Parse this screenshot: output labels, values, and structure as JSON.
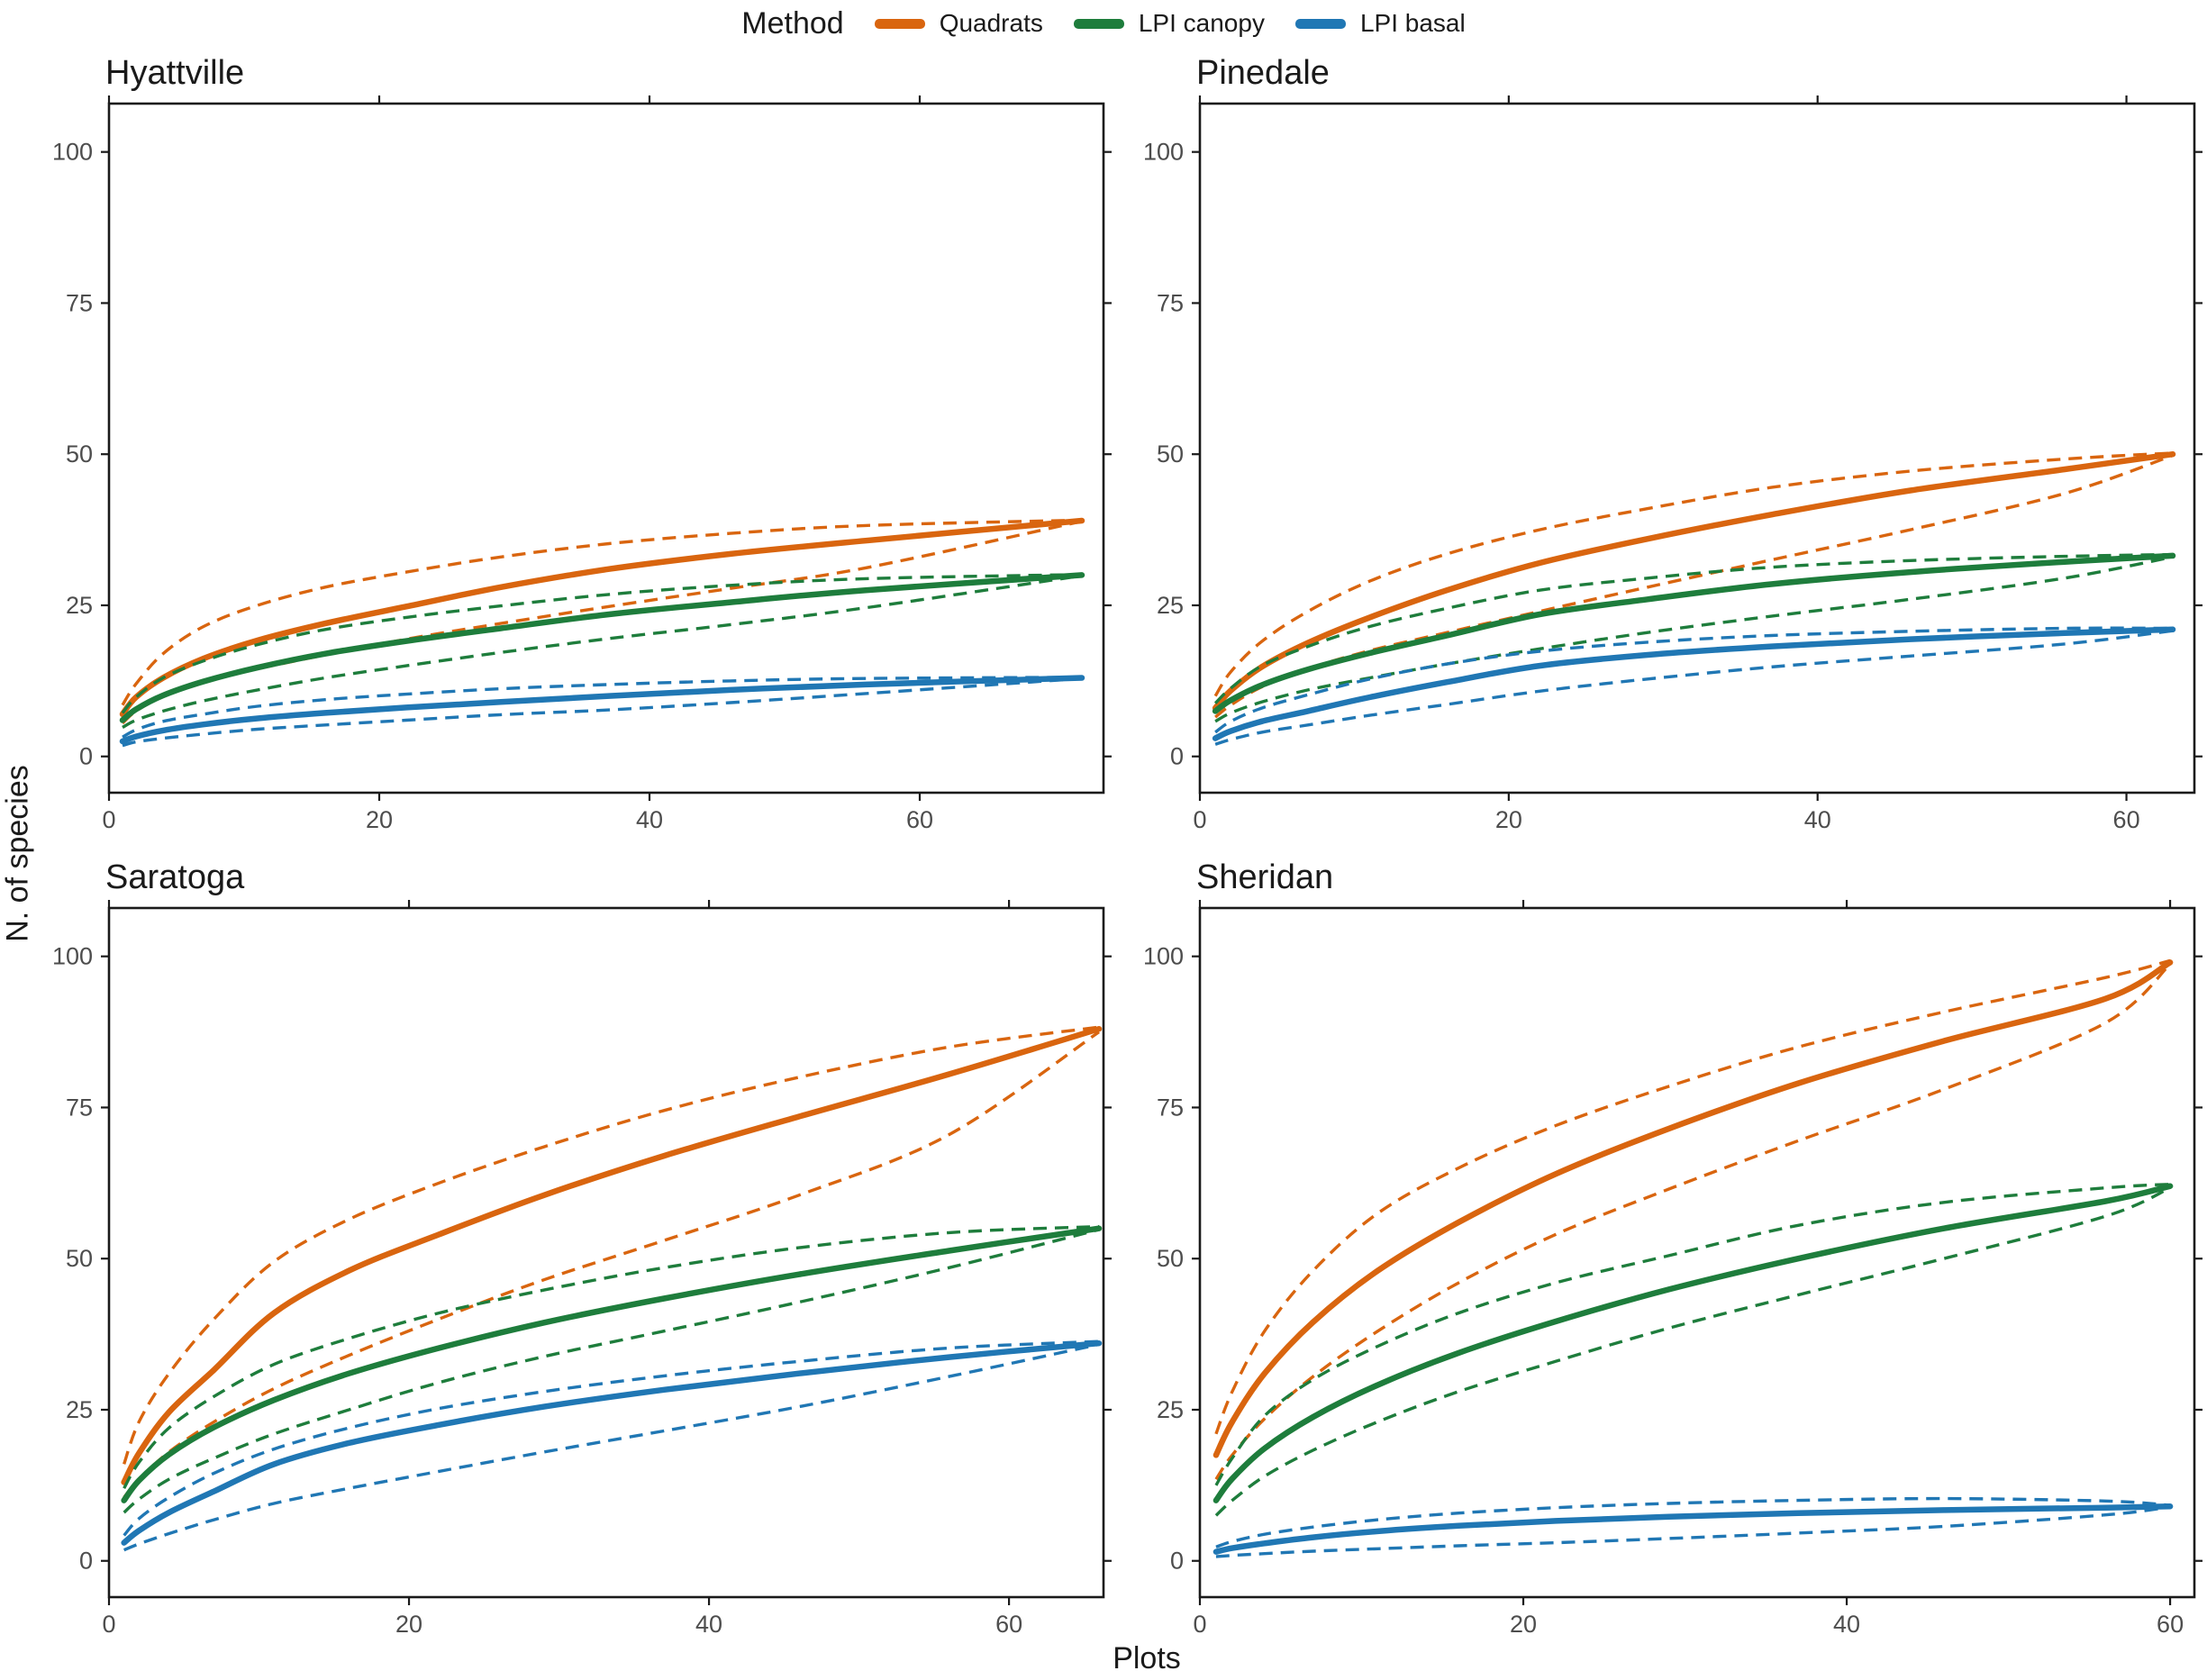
{
  "legend": {
    "title": "Method",
    "items": [
      {
        "label": "Quadrats",
        "color": "#D9650F"
      },
      {
        "label": "LPI canopy",
        "color": "#1E7D3C"
      },
      {
        "label": "LPI basal",
        "color": "#2077B4"
      }
    ]
  },
  "axes": {
    "x_title": "Plots",
    "y_title": "N. of species",
    "x_ticks": [
      0,
      20,
      40,
      60
    ],
    "y_ticks": [
      0,
      25,
      50,
      75,
      100
    ],
    "y_range": [
      0,
      100
    ],
    "grid": false,
    "tick_label_color": "#4d4d4d"
  },
  "chart_data": [
    {
      "type": "line",
      "site": "Hyattville",
      "n_plots": 72,
      "x_axis_max": 73.6,
      "x": [
        1,
        2,
        4,
        7,
        11,
        16,
        22,
        29,
        37,
        46,
        56,
        72
      ],
      "series": [
        {
          "method": "Quadrats",
          "style": "solid+dashed-ci",
          "mean": [
            7,
            9.8,
            13,
            16.2,
            19.2,
            22,
            24.8,
            28,
            31,
            33.5,
            35.7,
            39
          ],
          "ci_hi": [
            8.5,
            12,
            17,
            21.5,
            25,
            28,
            30.5,
            33,
            35.2,
            36.9,
            38.2,
            39.1
          ],
          "ci_lo": [
            5.5,
            7.5,
            10,
            12.5,
            14.5,
            16.8,
            19.4,
            22,
            24.8,
            27.8,
            31.2,
            38.9
          ]
        },
        {
          "method": "LPI canopy",
          "style": "solid+dashed-ci",
          "mean": [
            6,
            7.8,
            10.1,
            12.4,
            14.7,
            17,
            19.1,
            21.2,
            23.5,
            25.5,
            27.5,
            30
          ],
          "ci_hi": [
            7.2,
            9.8,
            13,
            15.8,
            18.5,
            21,
            23,
            24.9,
            26.8,
            28.3,
            29.4,
            30.1
          ],
          "ci_lo": [
            4.8,
            6,
            7.5,
            9.2,
            11,
            13,
            15,
            17.2,
            19.5,
            21.8,
            24.6,
            29.9
          ]
        },
        {
          "method": "LPI basal",
          "style": "solid+dashed-ci",
          "mean": [
            2.5,
            3.3,
            4.3,
            5.3,
            6.3,
            7.2,
            8.1,
            9,
            10,
            11,
            11.9,
            13
          ],
          "ci_hi": [
            3.2,
            4.4,
            5.8,
            7,
            8.3,
            9.4,
            10.3,
            11.2,
            11.9,
            12.5,
            12.9,
            13.1
          ],
          "ci_lo": [
            1.8,
            2.4,
            3,
            3.7,
            4.5,
            5.2,
            6,
            6.9,
            7.7,
            8.9,
            10.4,
            12.9
          ]
        }
      ]
    },
    {
      "type": "line",
      "site": "Pinedale",
      "n_plots": 63,
      "x_axis_max": 64.4,
      "x": [
        1,
        2,
        4,
        7,
        11,
        16,
        22,
        29,
        37,
        46,
        56,
        63
      ],
      "series": [
        {
          "method": "Quadrats",
          "style": "solid+dashed-ci",
          "mean": [
            8,
            10.9,
            14.8,
            18.8,
            23,
            27.5,
            32,
            36,
            40,
            44,
            47.5,
            50
          ],
          "ci_hi": [
            10,
            14,
            19,
            24,
            29,
            33.5,
            37.5,
            41,
            44.5,
            47.2,
            49.2,
            50.2
          ],
          "ci_lo": [
            6.5,
            8.5,
            11.5,
            14.5,
            17.5,
            20.5,
            24,
            28,
            32.5,
            37.5,
            43.5,
            49.8
          ]
        },
        {
          "method": "LPI canopy",
          "style": "solid+dashed-ci",
          "mean": [
            7.5,
            9.3,
            11.8,
            14.4,
            17.1,
            20,
            23.5,
            26,
            28.5,
            30.5,
            32.2,
            33.2
          ],
          "ci_hi": [
            8.8,
            11.3,
            15,
            18.2,
            21.5,
            24.5,
            27.5,
            29.5,
            31.3,
            32.4,
            33.1,
            33.4
          ],
          "ci_lo": [
            5.8,
            7.2,
            9,
            11,
            13,
            15.3,
            17.8,
            20.5,
            23.2,
            26,
            29.5,
            33
          ]
        },
        {
          "method": "LPI basal",
          "style": "solid+dashed-ci",
          "mean": [
            3,
            4.2,
            5.8,
            7.5,
            9.8,
            12.3,
            15,
            16.8,
            18.2,
            19.4,
            20.4,
            21
          ],
          "ci_hi": [
            4,
            5.8,
            8,
            10.2,
            12.8,
            15.3,
            17.4,
            18.9,
            20,
            20.7,
            21.2,
            21.2
          ],
          "ci_lo": [
            2,
            2.8,
            4,
            5.2,
            6.8,
            8.6,
            10.8,
            12.8,
            14.8,
            16.6,
            18.6,
            20.8
          ]
        }
      ]
    },
    {
      "type": "line",
      "site": "Saratoga",
      "n_plots": 66,
      "x_axis_max": 66.3,
      "x": [
        1,
        2,
        4,
        7,
        11,
        16,
        22,
        29,
        37,
        46,
        56,
        66
      ],
      "series": [
        {
          "method": "Quadrats",
          "style": "solid+dashed-ci",
          "mean": [
            13,
            17.8,
            24.6,
            31.6,
            41,
            48,
            54,
            60.5,
            67,
            73.5,
            80.5,
            88
          ],
          "ci_hi": [
            16,
            23,
            31,
            40,
            49.5,
            56.5,
            62.5,
            68.5,
            74.5,
            80,
            85,
            88.3
          ],
          "ci_lo": [
            10.5,
            13.5,
            18,
            23,
            28.5,
            34,
            40,
            46.5,
            53,
            60.5,
            70.5,
            87.5
          ]
        },
        {
          "method": "LPI canopy",
          "style": "solid+dashed-ci",
          "mean": [
            10,
            13.3,
            17.6,
            22.1,
            26.6,
            31,
            35.2,
            39.4,
            43.4,
            47.4,
            51.3,
            55
          ],
          "ci_hi": [
            12,
            16.3,
            22,
            27.2,
            32.5,
            36.8,
            41,
            44.8,
            48.5,
            51.8,
            54.3,
            55.3
          ],
          "ci_lo": [
            8,
            10.2,
            13.5,
            17,
            21,
            25,
            29.5,
            33.8,
            38,
            42.8,
            48.5,
            54.8
          ]
        },
        {
          "method": "LPI basal",
          "style": "solid+dashed-ci",
          "mean": [
            3,
            5,
            8,
            11.5,
            16,
            19.5,
            22.5,
            25.5,
            28.3,
            31,
            33.7,
            36
          ],
          "ci_hi": [
            4.2,
            7,
            10.5,
            14.5,
            18.5,
            22,
            25.2,
            28,
            30.6,
            33,
            35.2,
            36.3
          ],
          "ci_lo": [
            1.8,
            2.8,
            4.5,
            6.8,
            9.5,
            12,
            14.8,
            18,
            21.5,
            25.5,
            30.5,
            35.8
          ]
        }
      ]
    },
    {
      "type": "line",
      "site": "Sheridan",
      "n_plots": 60,
      "x_axis_max": 61.5,
      "x": [
        1,
        2,
        4,
        7,
        11,
        16,
        22,
        29,
        37,
        46,
        56,
        60
      ],
      "series": [
        {
          "method": "Quadrats",
          "style": "solid+dashed-ci",
          "mean": [
            17.5,
            23,
            31,
            39.5,
            48,
            56,
            64,
            71.5,
            79,
            86,
            93,
            99
          ],
          "ci_hi": [
            21,
            28,
            38,
            48,
            57.5,
            65,
            72,
            78.5,
            85,
            90.8,
            96.5,
            99.3
          ],
          "ci_lo": [
            13.5,
            17.5,
            23.5,
            30.5,
            38,
            46,
            54,
            61.5,
            69.5,
            78,
            89,
            98.7
          ]
        },
        {
          "method": "LPI canopy",
          "style": "solid+dashed-ci",
          "mean": [
            10,
            13.6,
            18.6,
            23.8,
            29.1,
            34.4,
            39.6,
            44.9,
            50,
            55,
            59.5,
            62
          ],
          "ci_hi": [
            12.5,
            17,
            24,
            30,
            35.5,
            41,
            46,
            50.5,
            55.5,
            59.3,
            61.7,
            62.3
          ],
          "ci_lo": [
            7.5,
            10,
            14,
            18.3,
            23,
            28,
            33,
            38.5,
            44,
            50,
            57,
            61.7
          ]
        },
        {
          "method": "LPI basal",
          "style": "solid+dashed-ci",
          "mean": [
            1.5,
            2.1,
            2.9,
            3.9,
            4.9,
            5.8,
            6.6,
            7.3,
            7.9,
            8.4,
            8.8,
            9
          ],
          "ci_hi": [
            2.3,
            3.2,
            4.4,
            5.6,
            6.8,
            7.9,
            8.8,
            9.5,
            10,
            10.3,
            9.9,
            9.2
          ],
          "ci_lo": [
            0.7,
            0.9,
            1.2,
            1.6,
            2,
            2.5,
            3,
            3.7,
            4.6,
            5.7,
            7.6,
            8.9
          ]
        }
      ]
    }
  ]
}
